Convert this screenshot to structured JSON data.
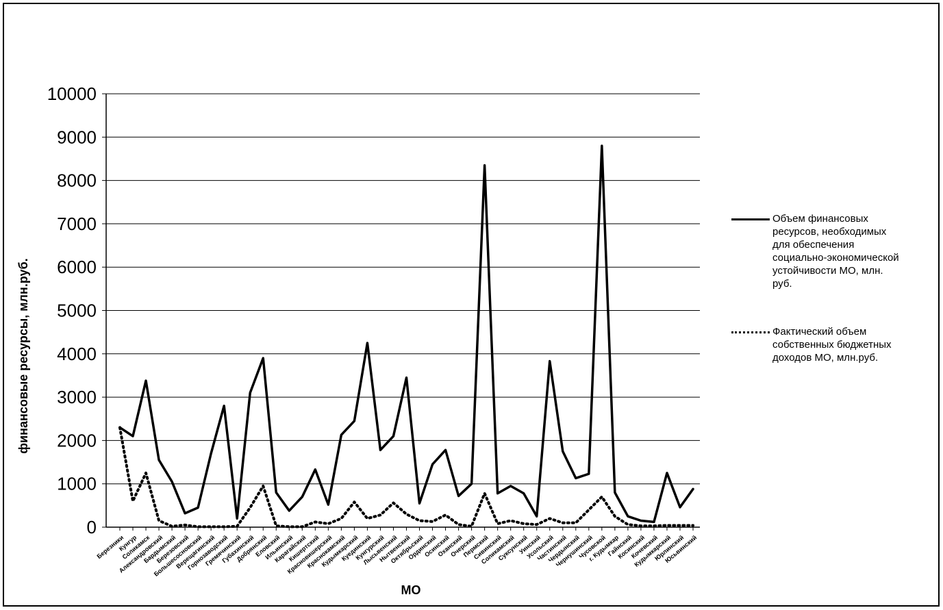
{
  "chart_data": {
    "type": "line",
    "y_label": "финансовые ресурсы, млн.руб.",
    "x_label": "МО",
    "categories": [
      "Березники",
      "Кунгур",
      "Соликамск",
      "Александровский",
      "Бардымский",
      "Березовский",
      "Большесосновский",
      "Верещагинский",
      "Горнозаводский",
      "Гремячинский",
      "Губахинский",
      "Добрянский",
      "Еловский",
      "Ильинский",
      "Карагайский",
      "Кишертский",
      "Красновишерский",
      "Краснокамский",
      "Кудымкарский",
      "Куединский",
      "Кунгурский",
      "Лысьвенский",
      "Нытвенский",
      "Октябрьский",
      "Ординский",
      "Осинский",
      "Оханский",
      "Очерский",
      "Пермский",
      "Сивинский",
      "Соликамский",
      "Суксунский",
      "Уинский",
      "Усольский",
      "Частинский",
      "Чердынский",
      "Чернушинский",
      "Чусовской",
      "г. Кудымкар",
      "Гайнский",
      "Косинский",
      "Кочевский",
      "Кудымкарский",
      "Юрлинский",
      "Юсьвинский"
    ],
    "series": [
      {
        "name": "Объем финансовых ресурсов, необходимых для обеспечения социально-экономической устойчивости МО, млн. руб.",
        "color": "#000000",
        "style": "solid",
        "values": [
          2300,
          2100,
          3380,
          1550,
          1050,
          320,
          450,
          1700,
          2800,
          200,
          3100,
          3900,
          800,
          380,
          700,
          1330,
          520,
          2130,
          2450,
          4250,
          1780,
          2100,
          3450,
          550,
          1450,
          1780,
          720,
          1000,
          8350,
          780,
          950,
          780,
          250,
          3830,
          1750,
          1130,
          1230,
          8800,
          800,
          250,
          150,
          120,
          1250,
          460,
          880
        ]
      },
      {
        "name": "Фактический объем собственных бюджетных доходов МО, млн.руб.",
        "color": "#000000",
        "style": "dotted",
        "values": [
          2300,
          600,
          1250,
          150,
          20,
          50,
          10,
          10,
          10,
          20,
          450,
          950,
          30,
          10,
          10,
          120,
          80,
          200,
          580,
          200,
          280,
          560,
          300,
          150,
          130,
          280,
          60,
          20,
          780,
          80,
          150,
          80,
          60,
          200,
          100,
          100,
          400,
          700,
          250,
          60,
          30,
          30,
          40,
          40,
          40
        ]
      }
    ],
    "ylim": [
      0,
      10000
    ],
    "yticks": [
      0,
      1000,
      2000,
      3000,
      4000,
      5000,
      6000,
      7000,
      8000,
      9000,
      10000
    ],
    "grid": true,
    "legend": "right"
  }
}
